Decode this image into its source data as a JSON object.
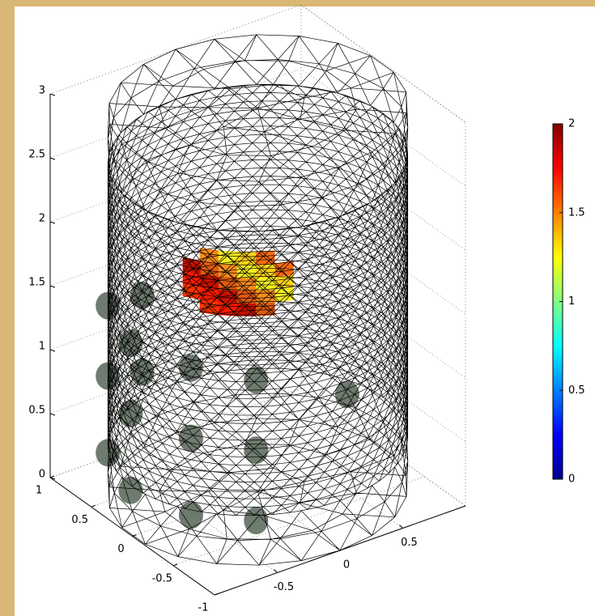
{
  "chart_data": {
    "type": "mesh3d",
    "xlim": [
      -1,
      1
    ],
    "xticks": [
      -1,
      -0.5,
      0,
      0.5,
      1
    ],
    "ylim": [
      -1,
      1
    ],
    "yticks": [
      -0.5,
      0,
      0.5
    ],
    "zlim": [
      0,
      3
    ],
    "zticks": [
      0,
      0.5,
      1,
      1.5,
      2,
      2.5,
      3
    ],
    "colorbar": {
      "clim": [
        0,
        2
      ],
      "ticks": [
        0,
        0.5,
        1,
        1.5,
        2
      ]
    },
    "grid": true
  }
}
